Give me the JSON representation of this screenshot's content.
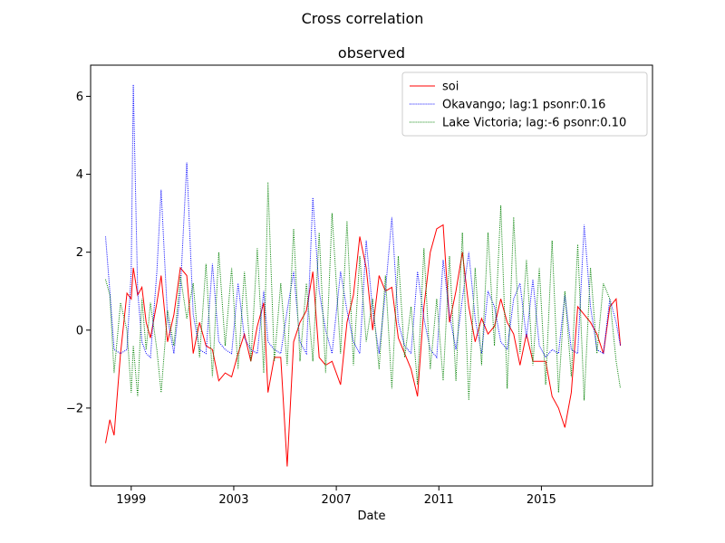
{
  "figure": {
    "suptitle": "Cross correlation"
  },
  "chart_data": {
    "type": "line",
    "title": "observed",
    "xlabel": "Date",
    "ylabel": "",
    "xlim": [
      "1997-06",
      "2019-05"
    ],
    "ylim": [
      -4.0,
      6.8
    ],
    "x_ticks": [
      "1999",
      "2003",
      "2007",
      "2011",
      "2015"
    ],
    "y_ticks": [
      -2,
      0,
      2,
      4,
      6
    ],
    "y_tick_labels": [
      "−2",
      "0",
      "2",
      "4",
      "6"
    ],
    "legend_position": "upper right",
    "grid": false,
    "series": [
      {
        "name": "soi",
        "color": "#ff0000",
        "style": "solid",
        "points": [
          [
            "1998-01",
            -2.9
          ],
          [
            "1998-03",
            -2.3
          ],
          [
            "1998-05",
            -2.7
          ],
          [
            "1998-08",
            -0.6
          ],
          [
            "1998-11",
            0.95
          ],
          [
            "1999-01",
            0.8
          ],
          [
            "1999-02",
            1.6
          ],
          [
            "1999-04",
            0.9
          ],
          [
            "1999-06",
            1.1
          ],
          [
            "1999-08",
            0.2
          ],
          [
            "1999-10",
            -0.2
          ],
          [
            "2000-01",
            0.7
          ],
          [
            "2000-03",
            1.4
          ],
          [
            "2000-06",
            -0.3
          ],
          [
            "2000-09",
            0.4
          ],
          [
            "2000-12",
            1.6
          ],
          [
            "2001-03",
            1.4
          ],
          [
            "2001-06",
            -0.6
          ],
          [
            "2001-09",
            0.2
          ],
          [
            "2001-12",
            -0.4
          ],
          [
            "2002-03",
            -0.5
          ],
          [
            "2002-06",
            -1.3
          ],
          [
            "2002-09",
            -1.1
          ],
          [
            "2002-12",
            -1.2
          ],
          [
            "2003-03",
            -0.6
          ],
          [
            "2003-06",
            -0.1
          ],
          [
            "2003-09",
            -0.8
          ],
          [
            "2003-12",
            0.1
          ],
          [
            "2004-03",
            0.7
          ],
          [
            "2004-05",
            -1.6
          ],
          [
            "2004-08",
            -0.7
          ],
          [
            "2004-11",
            -0.7
          ],
          [
            "2005-02",
            -3.5
          ],
          [
            "2005-05",
            -0.3
          ],
          [
            "2005-08",
            0.2
          ],
          [
            "2005-11",
            0.5
          ],
          [
            "2006-02",
            1.5
          ],
          [
            "2006-05",
            -0.7
          ],
          [
            "2006-08",
            -0.9
          ],
          [
            "2006-11",
            -0.8
          ],
          [
            "2007-03",
            -1.4
          ],
          [
            "2007-06",
            0.2
          ],
          [
            "2007-09",
            0.9
          ],
          [
            "2007-12",
            2.4
          ],
          [
            "2008-03",
            1.6
          ],
          [
            "2008-06",
            0.0
          ],
          [
            "2008-09",
            1.4
          ],
          [
            "2008-12",
            1.0
          ],
          [
            "2009-03",
            1.1
          ],
          [
            "2009-06",
            -0.2
          ],
          [
            "2009-09",
            -0.6
          ],
          [
            "2009-12",
            -1.0
          ],
          [
            "2010-03",
            -1.7
          ],
          [
            "2010-06",
            0.6
          ],
          [
            "2010-09",
            2.0
          ],
          [
            "2010-12",
            2.6
          ],
          [
            "2011-03",
            2.7
          ],
          [
            "2011-06",
            0.2
          ],
          [
            "2011-09",
            1.0
          ],
          [
            "2011-12",
            2.0
          ],
          [
            "2012-03",
            0.6
          ],
          [
            "2012-06",
            -0.3
          ],
          [
            "2012-09",
            0.3
          ],
          [
            "2012-12",
            -0.1
          ],
          [
            "2013-03",
            0.1
          ],
          [
            "2013-06",
            0.8
          ],
          [
            "2013-09",
            0.2
          ],
          [
            "2013-12",
            -0.1
          ],
          [
            "2014-03",
            -0.9
          ],
          [
            "2014-06",
            -0.1
          ],
          [
            "2014-09",
            -0.8
          ],
          [
            "2014-12",
            -0.8
          ],
          [
            "2015-03",
            -0.8
          ],
          [
            "2015-06",
            -1.7
          ],
          [
            "2015-09",
            -2.0
          ],
          [
            "2015-12",
            -2.5
          ],
          [
            "2016-03",
            -1.6
          ],
          [
            "2016-06",
            0.6
          ],
          [
            "2016-09",
            0.4
          ],
          [
            "2016-12",
            0.2
          ],
          [
            "2017-03",
            -0.1
          ],
          [
            "2017-06",
            -0.6
          ],
          [
            "2017-09",
            0.6
          ],
          [
            "2017-12",
            0.8
          ],
          [
            "2018-02",
            -0.4
          ]
        ]
      },
      {
        "name": "Okavango; lag:1 psonr:0.16",
        "color": "#0000ff",
        "style": "dotted",
        "points": [
          [
            "1998-01",
            2.4
          ],
          [
            "1998-03",
            1.0
          ],
          [
            "1998-05",
            -0.5
          ],
          [
            "1998-08",
            -0.6
          ],
          [
            "1998-11",
            -0.5
          ],
          [
            "1999-01",
            1.5
          ],
          [
            "1999-02",
            6.3
          ],
          [
            "1999-04",
            1.0
          ],
          [
            "1999-06",
            -0.3
          ],
          [
            "1999-08",
            -0.6
          ],
          [
            "1999-10",
            -0.7
          ],
          [
            "2000-01",
            1.5
          ],
          [
            "2000-03",
            3.6
          ],
          [
            "2000-06",
            0.3
          ],
          [
            "2000-09",
            -0.6
          ],
          [
            "2000-12",
            1.0
          ],
          [
            "2001-03",
            4.3
          ],
          [
            "2001-06",
            0.4
          ],
          [
            "2001-09",
            -0.5
          ],
          [
            "2001-12",
            -0.6
          ],
          [
            "2002-03",
            1.7
          ],
          [
            "2002-06",
            -0.3
          ],
          [
            "2002-09",
            -0.5
          ],
          [
            "2002-12",
            -0.6
          ],
          [
            "2003-03",
            1.2
          ],
          [
            "2003-06",
            -0.2
          ],
          [
            "2003-09",
            -0.5
          ],
          [
            "2003-12",
            -0.6
          ],
          [
            "2004-03",
            1.0
          ],
          [
            "2004-05",
            -0.3
          ],
          [
            "2004-08",
            -0.5
          ],
          [
            "2004-11",
            -0.6
          ],
          [
            "2005-02",
            0.5
          ],
          [
            "2005-05",
            1.5
          ],
          [
            "2005-08",
            -0.3
          ],
          [
            "2005-11",
            -0.6
          ],
          [
            "2006-02",
            3.4
          ],
          [
            "2006-05",
            1.0
          ],
          [
            "2006-08",
            0.0
          ],
          [
            "2006-11",
            -0.6
          ],
          [
            "2007-03",
            1.5
          ],
          [
            "2007-06",
            0.5
          ],
          [
            "2007-09",
            -0.3
          ],
          [
            "2007-12",
            -0.6
          ],
          [
            "2008-03",
            2.3
          ],
          [
            "2008-06",
            0.5
          ],
          [
            "2008-09",
            -0.6
          ],
          [
            "2008-12",
            1.0
          ],
          [
            "2009-03",
            2.9
          ],
          [
            "2009-06",
            0.2
          ],
          [
            "2009-09",
            -0.4
          ],
          [
            "2009-12",
            -0.6
          ],
          [
            "2010-03",
            1.5
          ],
          [
            "2010-06",
            0.3
          ],
          [
            "2010-09",
            -0.5
          ],
          [
            "2010-12",
            -0.7
          ],
          [
            "2011-03",
            1.8
          ],
          [
            "2011-06",
            0.4
          ],
          [
            "2011-09",
            -0.5
          ],
          [
            "2011-12",
            0.8
          ],
          [
            "2012-03",
            2.0
          ],
          [
            "2012-06",
            0.3
          ],
          [
            "2012-09",
            -0.6
          ],
          [
            "2012-12",
            1.0
          ],
          [
            "2013-03",
            0.6
          ],
          [
            "2013-06",
            -0.3
          ],
          [
            "2013-09",
            -0.5
          ],
          [
            "2013-12",
            0.8
          ],
          [
            "2014-03",
            1.2
          ],
          [
            "2014-06",
            -0.2
          ],
          [
            "2014-09",
            1.3
          ],
          [
            "2014-12",
            -0.4
          ],
          [
            "2015-03",
            -0.7
          ],
          [
            "2015-06",
            -0.5
          ],
          [
            "2015-09",
            -0.6
          ],
          [
            "2015-12",
            0.9
          ],
          [
            "2016-03",
            -0.5
          ],
          [
            "2016-06",
            -0.6
          ],
          [
            "2016-09",
            2.7
          ],
          [
            "2016-12",
            0.6
          ],
          [
            "2017-03",
            -0.5
          ],
          [
            "2017-06",
            -0.6
          ],
          [
            "2017-09",
            0.8
          ],
          [
            "2017-12",
            0.2
          ],
          [
            "2018-02",
            -0.4
          ]
        ]
      },
      {
        "name": "Lake Victoria; lag:-6 psonr:0.10",
        "color": "#008000",
        "style": "dotted",
        "points": [
          [
            "1998-01",
            1.3
          ],
          [
            "1998-03",
            0.9
          ],
          [
            "1998-05",
            -1.1
          ],
          [
            "1998-08",
            0.7
          ],
          [
            "1998-11",
            0.0
          ],
          [
            "1999-01",
            -1.6
          ],
          [
            "1999-02",
            -0.4
          ],
          [
            "1999-04",
            -1.7
          ],
          [
            "1999-06",
            0.8
          ],
          [
            "1999-08",
            -0.5
          ],
          [
            "1999-10",
            0.7
          ],
          [
            "2000-01",
            -0.5
          ],
          [
            "2000-03",
            -1.6
          ],
          [
            "2000-06",
            0.5
          ],
          [
            "2000-09",
            -0.4
          ],
          [
            "2000-12",
            1.4
          ],
          [
            "2001-03",
            0.3
          ],
          [
            "2001-06",
            1.2
          ],
          [
            "2001-09",
            -0.7
          ],
          [
            "2001-12",
            1.7
          ],
          [
            "2002-03",
            -1.2
          ],
          [
            "2002-06",
            2.0
          ],
          [
            "2002-09",
            -0.4
          ],
          [
            "2002-12",
            1.6
          ],
          [
            "2003-03",
            -1.0
          ],
          [
            "2003-06",
            1.5
          ],
          [
            "2003-09",
            -0.8
          ],
          [
            "2003-12",
            2.1
          ],
          [
            "2004-03",
            -1.1
          ],
          [
            "2004-05",
            3.8
          ],
          [
            "2004-08",
            -0.8
          ],
          [
            "2004-11",
            1.2
          ],
          [
            "2005-02",
            -0.9
          ],
          [
            "2005-05",
            2.6
          ],
          [
            "2005-08",
            -0.8
          ],
          [
            "2005-11",
            1.2
          ],
          [
            "2006-02",
            -0.8
          ],
          [
            "2006-05",
            2.5
          ],
          [
            "2006-08",
            -1.1
          ],
          [
            "2006-11",
            3.0
          ],
          [
            "2007-03",
            -0.6
          ],
          [
            "2007-06",
            2.8
          ],
          [
            "2007-09",
            -0.9
          ],
          [
            "2007-12",
            1.9
          ],
          [
            "2008-03",
            -0.3
          ],
          [
            "2008-06",
            0.8
          ],
          [
            "2008-09",
            -1.0
          ],
          [
            "2008-12",
            1.4
          ],
          [
            "2009-03",
            -1.5
          ],
          [
            "2009-06",
            1.9
          ],
          [
            "2009-09",
            -0.7
          ],
          [
            "2009-12",
            0.6
          ],
          [
            "2010-03",
            -1.4
          ],
          [
            "2010-06",
            2.1
          ],
          [
            "2010-09",
            -1.0
          ],
          [
            "2010-12",
            0.8
          ],
          [
            "2011-03",
            -1.3
          ],
          [
            "2011-06",
            1.9
          ],
          [
            "2011-09",
            -1.3
          ],
          [
            "2011-12",
            2.5
          ],
          [
            "2012-03",
            -1.8
          ],
          [
            "2012-06",
            1.6
          ],
          [
            "2012-09",
            -0.9
          ],
          [
            "2012-12",
            2.5
          ],
          [
            "2013-03",
            -0.4
          ],
          [
            "2013-06",
            3.2
          ],
          [
            "2013-09",
            -1.5
          ],
          [
            "2013-12",
            2.9
          ],
          [
            "2014-03",
            -0.6
          ],
          [
            "2014-06",
            1.8
          ],
          [
            "2014-09",
            -0.9
          ],
          [
            "2014-12",
            1.6
          ],
          [
            "2015-03",
            -1.4
          ],
          [
            "2015-06",
            2.3
          ],
          [
            "2015-09",
            -1.6
          ],
          [
            "2015-12",
            1.0
          ],
          [
            "2016-03",
            -1.2
          ],
          [
            "2016-06",
            2.2
          ],
          [
            "2016-09",
            -1.8
          ],
          [
            "2016-12",
            1.6
          ],
          [
            "2017-03",
            -0.6
          ],
          [
            "2017-06",
            1.2
          ],
          [
            "2017-09",
            0.8
          ],
          [
            "2017-12",
            -0.8
          ],
          [
            "2018-02",
            -1.5
          ]
        ]
      }
    ]
  }
}
